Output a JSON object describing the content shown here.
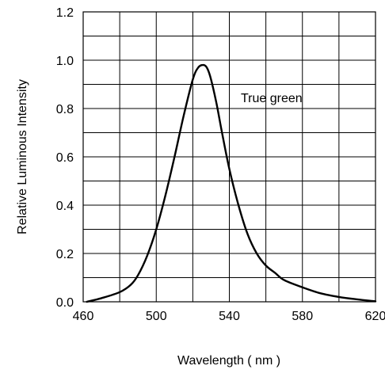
{
  "chart_data": {
    "type": "line",
    "title": "",
    "xlabel": "Wavelength ( nm )",
    "ylabel": "Relative Luminous Intensity",
    "xlim": [
      460,
      620
    ],
    "ylim": [
      0,
      1.2
    ],
    "x_ticks": [
      460,
      500,
      540,
      580,
      620
    ],
    "x_tick_labels": [
      "460",
      "500",
      "540",
      "580",
      "620"
    ],
    "y_ticks": [
      0,
      0.2,
      0.4,
      0.6,
      0.8,
      1.0,
      1.2
    ],
    "y_tick_labels": [
      "0.0",
      "0.2",
      "0.4",
      "0.6",
      "0.8",
      "1.0",
      "1.2"
    ],
    "grid": true,
    "grid_x_step": 20,
    "grid_y_step": 0.1,
    "annotation": "True green",
    "series": [
      {
        "name": "True green",
        "color": "#000000",
        "x": [
          462,
          470,
          480,
          486,
          490,
          495,
          500,
          505,
          510,
          515,
          520,
          523,
          526,
          528,
          530,
          533,
          536,
          540,
          545,
          550,
          555,
          560,
          565,
          570,
          580,
          590,
          600,
          610,
          620
        ],
        "y": [
          0.0,
          0.015,
          0.04,
          0.07,
          0.11,
          0.19,
          0.3,
          0.44,
          0.6,
          0.77,
          0.92,
          0.97,
          0.98,
          0.965,
          0.92,
          0.82,
          0.7,
          0.55,
          0.4,
          0.28,
          0.2,
          0.15,
          0.12,
          0.09,
          0.06,
          0.035,
          0.02,
          0.01,
          0.002
        ]
      }
    ]
  }
}
